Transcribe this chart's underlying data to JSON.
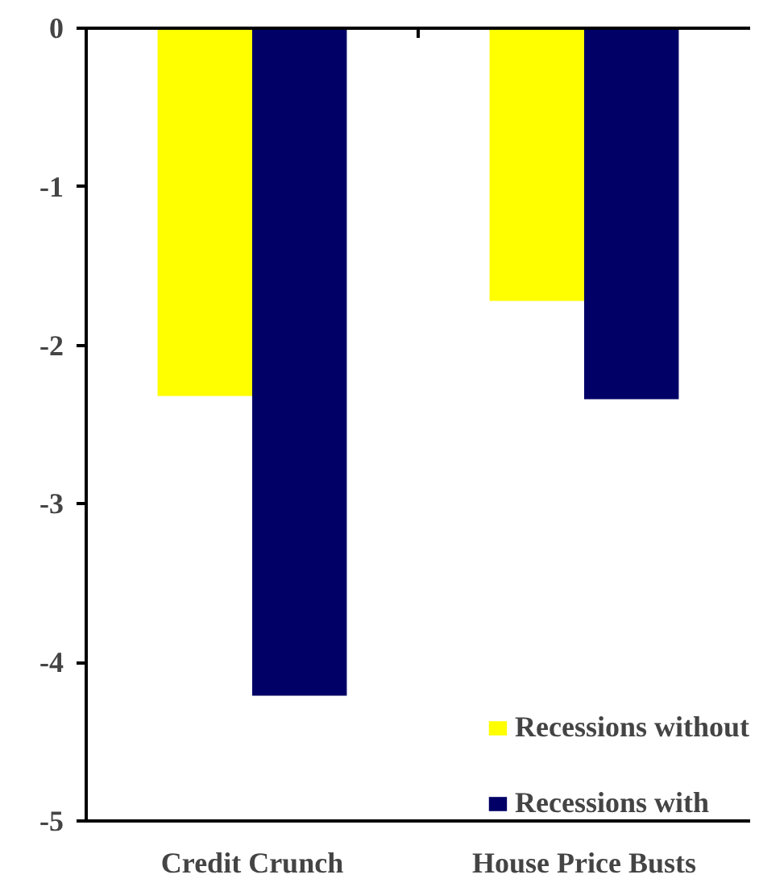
{
  "chart_data": {
    "type": "bar",
    "categories": [
      "Credit Crunch",
      "House Price Busts"
    ],
    "series": [
      {
        "name": "Recessions without",
        "color": "#ffff00",
        "values": [
          -2.32,
          -1.72
        ]
      },
      {
        "name": "Recessions with",
        "color": "#000066",
        "values": [
          -4.21,
          -2.34
        ]
      }
    ],
    "ylim": [
      -5,
      0
    ],
    "yticks": [
      0,
      -1,
      -2,
      -3,
      -4,
      -5
    ],
    "legend": "bottom right"
  }
}
